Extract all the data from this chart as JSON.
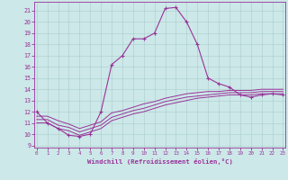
{
  "xlabel": "Windchill (Refroidissement éolien,°C)",
  "bg_color": "#cce8e8",
  "line_color": "#993399",
  "grid_color": "#aacccc",
  "x_ticks": [
    0,
    1,
    2,
    3,
    4,
    5,
    6,
    7,
    8,
    9,
    10,
    11,
    12,
    13,
    14,
    15,
    16,
    17,
    18,
    19,
    20,
    21,
    22,
    23
  ],
  "y_ticks": [
    9,
    10,
    11,
    12,
    13,
    14,
    15,
    16,
    17,
    18,
    19,
    20,
    21
  ],
  "ylim": [
    8.8,
    21.8
  ],
  "xlim": [
    -0.2,
    23.2
  ],
  "curve1_x": [
    0,
    1,
    2,
    3,
    4,
    5,
    6,
    7,
    8,
    9,
    10,
    11,
    12,
    13,
    14,
    15,
    16,
    17,
    18,
    19,
    20,
    21,
    22,
    23
  ],
  "curve1_y": [
    12.0,
    11.0,
    10.5,
    9.9,
    9.8,
    10.0,
    12.0,
    16.2,
    17.0,
    18.5,
    18.5,
    19.0,
    21.2,
    21.3,
    20.0,
    18.0,
    15.0,
    14.5,
    14.2,
    13.5,
    13.3,
    13.5,
    13.6,
    13.5
  ],
  "curve2_x": [
    0,
    1,
    2,
    3,
    4,
    5,
    6,
    7,
    8,
    9,
    10,
    11,
    12,
    13,
    14,
    15,
    16,
    17,
    18,
    19,
    20,
    21,
    22,
    23
  ],
  "curve2_y": [
    11.0,
    11.0,
    10.5,
    10.3,
    9.9,
    10.2,
    10.5,
    11.2,
    11.5,
    11.8,
    12.0,
    12.3,
    12.6,
    12.8,
    13.0,
    13.2,
    13.3,
    13.4,
    13.5,
    13.5,
    13.5,
    13.6,
    13.6,
    13.6
  ],
  "curve3_x": [
    0,
    1,
    2,
    3,
    4,
    5,
    6,
    7,
    8,
    9,
    10,
    11,
    12,
    13,
    14,
    15,
    16,
    17,
    18,
    19,
    20,
    21,
    22,
    23
  ],
  "curve3_y": [
    11.3,
    11.3,
    10.8,
    10.6,
    10.2,
    10.5,
    10.8,
    11.5,
    11.8,
    12.1,
    12.3,
    12.6,
    12.9,
    13.1,
    13.3,
    13.4,
    13.5,
    13.6,
    13.7,
    13.7,
    13.7,
    13.8,
    13.8,
    13.8
  ],
  "curve4_x": [
    0,
    1,
    2,
    3,
    4,
    5,
    6,
    7,
    8,
    9,
    10,
    11,
    12,
    13,
    14,
    15,
    16,
    17,
    18,
    19,
    20,
    21,
    22,
    23
  ],
  "curve4_y": [
    11.6,
    11.6,
    11.2,
    10.9,
    10.5,
    10.8,
    11.1,
    11.9,
    12.1,
    12.4,
    12.7,
    12.9,
    13.2,
    13.4,
    13.6,
    13.7,
    13.8,
    13.8,
    13.9,
    13.9,
    13.9,
    14.0,
    14.0,
    14.0
  ]
}
